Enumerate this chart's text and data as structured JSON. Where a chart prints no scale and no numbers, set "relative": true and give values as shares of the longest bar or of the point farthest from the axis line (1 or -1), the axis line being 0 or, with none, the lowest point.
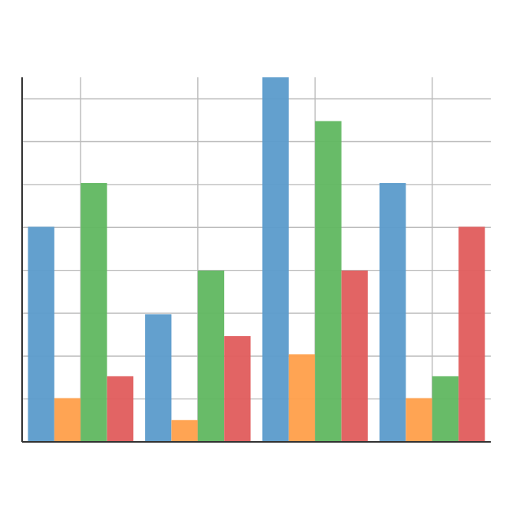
{
  "chart_data": {
    "type": "bar",
    "relative": true,
    "grid": true,
    "categories": [
      null,
      null,
      null,
      null
    ],
    "series": [
      {
        "color": "#5b9bcb",
        "values": [
          0.59,
          0.35,
          1,
          0.71
        ]
      },
      {
        "color": "#ff9f4a",
        "values": [
          0.12,
          0.06,
          0.24,
          0.12
        ]
      },
      {
        "color": "#60b760",
        "values": [
          0.71,
          0.47,
          0.88,
          0.18
        ]
      },
      {
        "color": "#e05c5c",
        "values": [
          0.18,
          0.29,
          0.47,
          0.59
        ]
      }
    ]
  }
}
